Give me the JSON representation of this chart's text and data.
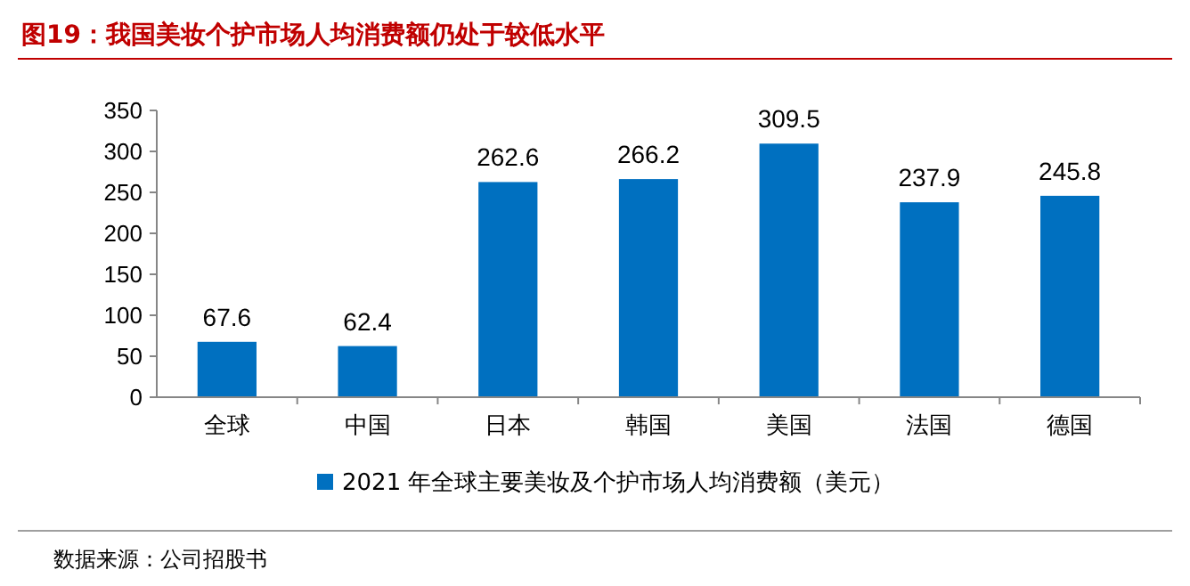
{
  "chart_data": {
    "type": "bar",
    "title": "图19：我国美妆个护市场人均消费额仍处于较低水平",
    "categories": [
      "全球",
      "中国",
      "日本",
      "韩国",
      "美国",
      "法国",
      "德国"
    ],
    "series": [
      {
        "name": "2021 年全球主要美妆及个护市场人均消费额（美元）",
        "color": "#0070c0",
        "values": [
          67.6,
          62.4,
          262.6,
          266.2,
          309.5,
          237.9,
          245.8
        ]
      }
    ],
    "ylim": [
      0,
      350
    ],
    "yticks": [
      0,
      50,
      100,
      150,
      200,
      250,
      300,
      350
    ],
    "grid": false,
    "legend": "bottom",
    "data_labels": true,
    "annotations": [
      "数据来源：公司招股书"
    ]
  }
}
